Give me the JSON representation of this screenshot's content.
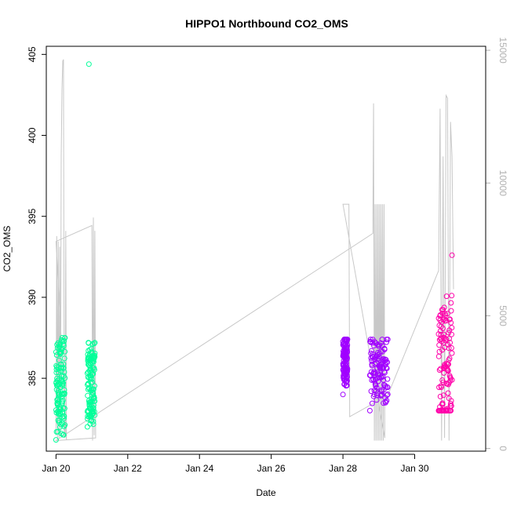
{
  "chart_data": {
    "type": "scatter",
    "title": "HIPPO1 Northbound CO2_OMS",
    "xlabel": "Date",
    "ylabel": "CO2_OMS",
    "xlim": [
      "2009-01-19T17:30",
      "2009-01-31T23:30"
    ],
    "ylim": [
      380.5,
      405.5
    ],
    "x_ticks": [
      "Jan 20",
      "Jan 22",
      "Jan 24",
      "Jan 26",
      "Jan 28",
      "Jan 30"
    ],
    "y_ticks": [
      385,
      390,
      395,
      400,
      405
    ],
    "y2_ticks": [
      0,
      5000,
      10000,
      15000
    ],
    "y2lim": [
      -100,
      15150
    ],
    "grid": false,
    "series": [
      {
        "color": "#00ff99",
        "clusters": [
          {
            "start": "2009-01-20T00:00",
            "end": "2009-01-20T06:00",
            "low": 381.2,
            "high": 387.5,
            "center": 384.5
          },
          {
            "start": "2009-01-20T21:00",
            "end": "2009-01-21T02:00",
            "low": 382.0,
            "high": 387.2,
            "center": 384.7
          }
        ],
        "outliers": [
          {
            "x": "2009-01-20T22:00",
            "y": 404.4
          }
        ]
      },
      {
        "color": "#a000ff",
        "clusters": [
          {
            "start": "2009-01-28T00:00",
            "end": "2009-01-28T03:00",
            "low": 384.0,
            "high": 387.4,
            "center": 386.2
          },
          {
            "start": "2009-01-28T18:00",
            "end": "2009-01-29T06:00",
            "low": 383.0,
            "high": 387.4,
            "center": 385.6
          }
        ]
      },
      {
        "color": "#ff00aa",
        "clusters": [
          {
            "start": "2009-01-30T16:00",
            "end": "2009-01-31T01:00",
            "low": 383.0,
            "high": 392.6,
            "center": 385.5
          }
        ]
      }
    ],
    "altitude_line": {
      "color": "#c8c8c8",
      "points": [
        [
          "2009-01-20T00:00",
          500
        ],
        [
          "2009-01-20T00:30",
          8000
        ],
        [
          "2009-01-20T01:00",
          300
        ],
        [
          "2009-01-20T01:30",
          7800
        ],
        [
          "2009-01-20T02:00",
          400
        ],
        [
          "2009-01-20T02:30",
          7600
        ],
        [
          "2009-01-20T03:00",
          500
        ],
        [
          "2009-01-20T03:30",
          11000
        ],
        [
          "2009-01-20T04:00",
          13500
        ],
        [
          "2009-01-20T04:30",
          14600
        ],
        [
          "2009-01-20T05:00",
          14650
        ],
        [
          "2009-01-20T05:30",
          600
        ],
        [
          "2009-01-20T06:00",
          400
        ],
        [
          "2009-01-20T06:30",
          8200
        ],
        [
          "2009-01-20T07:00",
          300
        ],
        [
          "2009-01-20T00:00",
          7800
        ],
        [
          "2009-01-21T00:00",
          8400
        ],
        [
          "2009-01-21T00:30",
          300
        ],
        [
          "2009-01-21T01:00",
          8700
        ],
        [
          "2009-01-21T01:30",
          500
        ],
        [
          "2009-01-21T02:00",
          8200
        ],
        [
          "2009-01-21T02:30",
          400
        ],
        [
          "2009-01-20T00:00",
          300
        ],
        [
          "2009-01-28T20:00",
          8100
        ],
        [
          "2009-01-28T20:30",
          13000
        ],
        [
          "2009-01-28T21:00",
          300
        ],
        [
          "2009-01-28T21:30",
          9200
        ],
        [
          "2009-01-28T22:00",
          300
        ],
        [
          "2009-01-28T22:30",
          9200
        ],
        [
          "2009-01-28T23:00",
          300
        ],
        [
          "2009-01-28T23:30",
          9200
        ],
        [
          "2009-01-29T00:00",
          300
        ],
        [
          "2009-01-29T00:30",
          9200
        ],
        [
          "2009-01-29T01:00",
          300
        ],
        [
          "2009-01-29T01:30",
          9200
        ],
        [
          "2009-01-29T02:00",
          300
        ],
        [
          "2009-01-29T02:30",
          9200
        ],
        [
          "2009-01-29T03:00",
          300
        ],
        [
          "2009-01-29T03:30",
          9200
        ],
        [
          "2009-01-29T04:00",
          400
        ],
        [
          "2009-01-28T00:00",
          9200
        ],
        [
          "2009-01-28T04:00",
          9200
        ],
        [
          "2009-01-28T04:30",
          1200
        ],
        [
          "2009-01-29T06:00",
          2000
        ],
        [
          "2009-01-30T16:00",
          6700
        ],
        [
          "2009-01-30T17:00",
          12800
        ],
        [
          "2009-01-30T18:00",
          300
        ],
        [
          "2009-01-30T19:00",
          11000
        ],
        [
          "2009-01-30T20:00",
          400
        ],
        [
          "2009-01-30T21:00",
          13300
        ],
        [
          "2009-01-30T22:00",
          13200
        ],
        [
          "2009-01-30T23:00",
          300
        ],
        [
          "2009-01-31T00:00",
          12300
        ],
        [
          "2009-01-31T01:00",
          11000
        ],
        [
          "2009-01-31T02:00",
          6000
        ]
      ]
    }
  }
}
